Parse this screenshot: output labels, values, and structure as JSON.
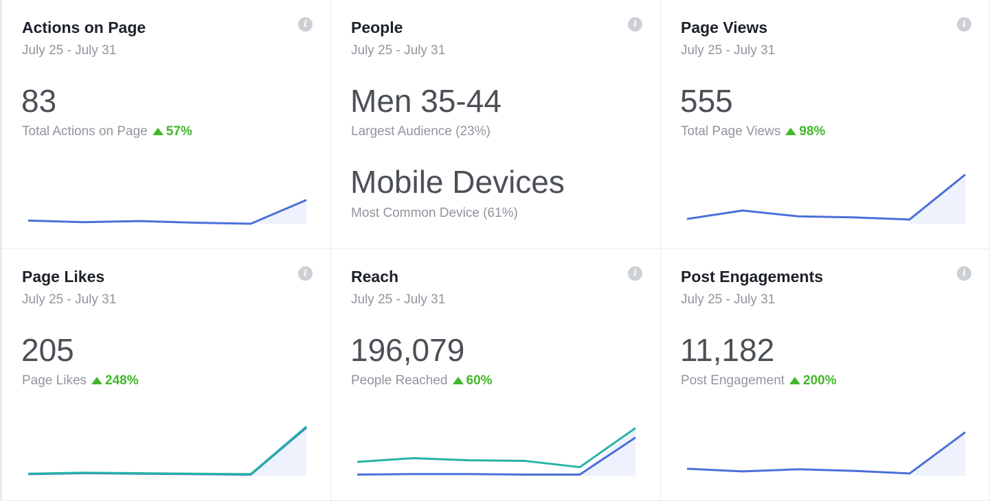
{
  "cards": [
    {
      "key": "actions",
      "title": "Actions on Page",
      "range": "July 25 - July 31",
      "value": "83",
      "label": "Total Actions on Page",
      "trend": "57%",
      "info_icon": "info-icon"
    },
    {
      "key": "people",
      "title": "People",
      "range": "July 25 - July 31",
      "value": "Men 35-44",
      "label": "Largest Audience (23%)",
      "value2": "Mobile Devices",
      "label2": "Most Common Device (61%)",
      "info_icon": "info-icon"
    },
    {
      "key": "views",
      "title": "Page Views",
      "range": "July 25 - July 31",
      "value": "555",
      "label": "Total Page Views",
      "trend": "98%",
      "info_icon": "info-icon"
    },
    {
      "key": "likes",
      "title": "Page Likes",
      "range": "July 25 - July 31",
      "value": "205",
      "label": "Page Likes",
      "trend": "248%",
      "info_icon": "info-icon"
    },
    {
      "key": "reach",
      "title": "Reach",
      "range": "July 25 - July 31",
      "value": "196,079",
      "label": "People Reached",
      "trend": "60%",
      "info_icon": "info-icon"
    },
    {
      "key": "engagement",
      "title": "Post Engagements",
      "range": "July 25 - July 31",
      "value": "11,182",
      "label": "Post Engagement",
      "trend": "200%",
      "info_icon": "info-icon"
    }
  ],
  "colors": {
    "blue_line": "#4a6fd8",
    "teal_line": "#25b3a3",
    "area_fill": "#eef2fc",
    "trend_up": "#42b72a"
  },
  "chart_data": [
    {
      "type": "line",
      "card": "actions",
      "x": [
        1,
        2,
        3,
        4,
        5,
        6
      ],
      "series": [
        {
          "values": [
            6,
            3,
            5,
            2,
            0,
            45
          ],
          "color": "#4a6fd8"
        }
      ],
      "ylim": [
        0,
        100
      ]
    },
    {
      "type": "line",
      "card": "views",
      "x": [
        1,
        2,
        3,
        4,
        5,
        6
      ],
      "series": [
        {
          "values": [
            9,
            25,
            14,
            12,
            8,
            93
          ],
          "color": "#4a6fd8"
        }
      ],
      "ylim": [
        0,
        100
      ]
    },
    {
      "type": "line",
      "card": "likes",
      "x": [
        1,
        2,
        3,
        4,
        5,
        6
      ],
      "series": [
        {
          "values": [
            3,
            5,
            4,
            3,
            2,
            100
          ],
          "color": "#4a6fd8"
        },
        {
          "values": [
            4,
            6,
            5,
            4,
            3,
            102
          ],
          "color": "#25b3a3"
        }
      ],
      "ylim": [
        0,
        110
      ]
    },
    {
      "type": "line",
      "card": "reach",
      "x": [
        1,
        2,
        3,
        4,
        5,
        6
      ],
      "series": [
        {
          "values": [
            2,
            3,
            3,
            2,
            2,
            72
          ],
          "color": "#4a6fd8"
        },
        {
          "values": [
            26,
            33,
            29,
            28,
            16,
            90
          ],
          "color": "#25b3a3"
        }
      ],
      "ylim": [
        0,
        100
      ]
    },
    {
      "type": "line",
      "card": "engagement",
      "x": [
        1,
        2,
        3,
        4,
        5,
        6
      ],
      "series": [
        {
          "values": [
            13,
            8,
            12,
            9,
            4,
            82
          ],
          "color": "#4a6fd8"
        }
      ],
      "ylim": [
        0,
        100
      ]
    }
  ]
}
